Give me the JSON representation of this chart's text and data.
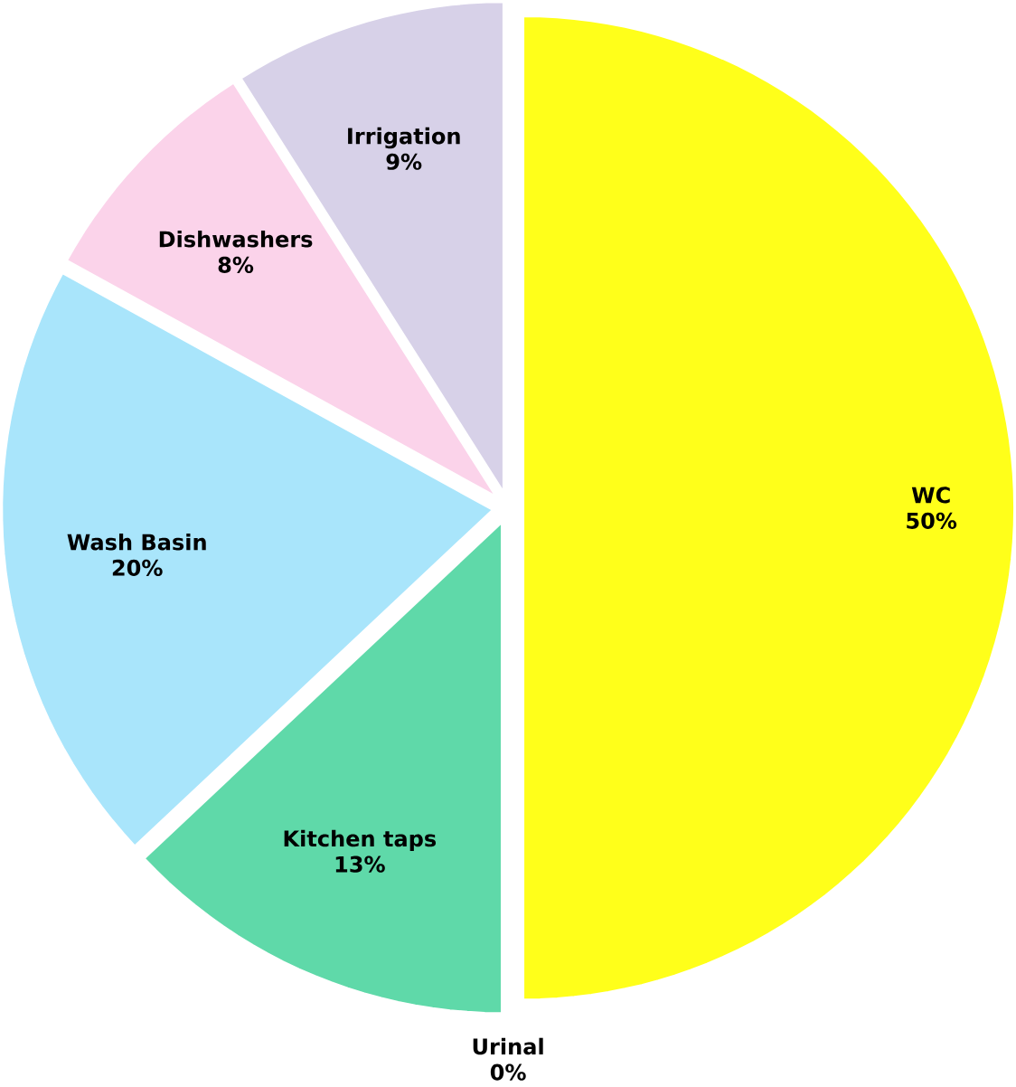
{
  "chart_data": {
    "type": "pie",
    "categories": [
      "WC",
      "Urinal",
      "Kitchen taps",
      "Wash Basin",
      "Dishwashers",
      "Irrigation"
    ],
    "values": [
      50,
      0,
      13,
      20,
      8,
      9
    ],
    "value_labels": [
      "50%",
      "0%",
      "13%",
      "20%",
      "8%",
      "9%"
    ],
    "colors": [
      "#ffff1a",
      "#f2f2f2",
      "#5fd9a9",
      "#a9e5fb",
      "#fbd3ea",
      "#d7d1e8"
    ]
  }
}
